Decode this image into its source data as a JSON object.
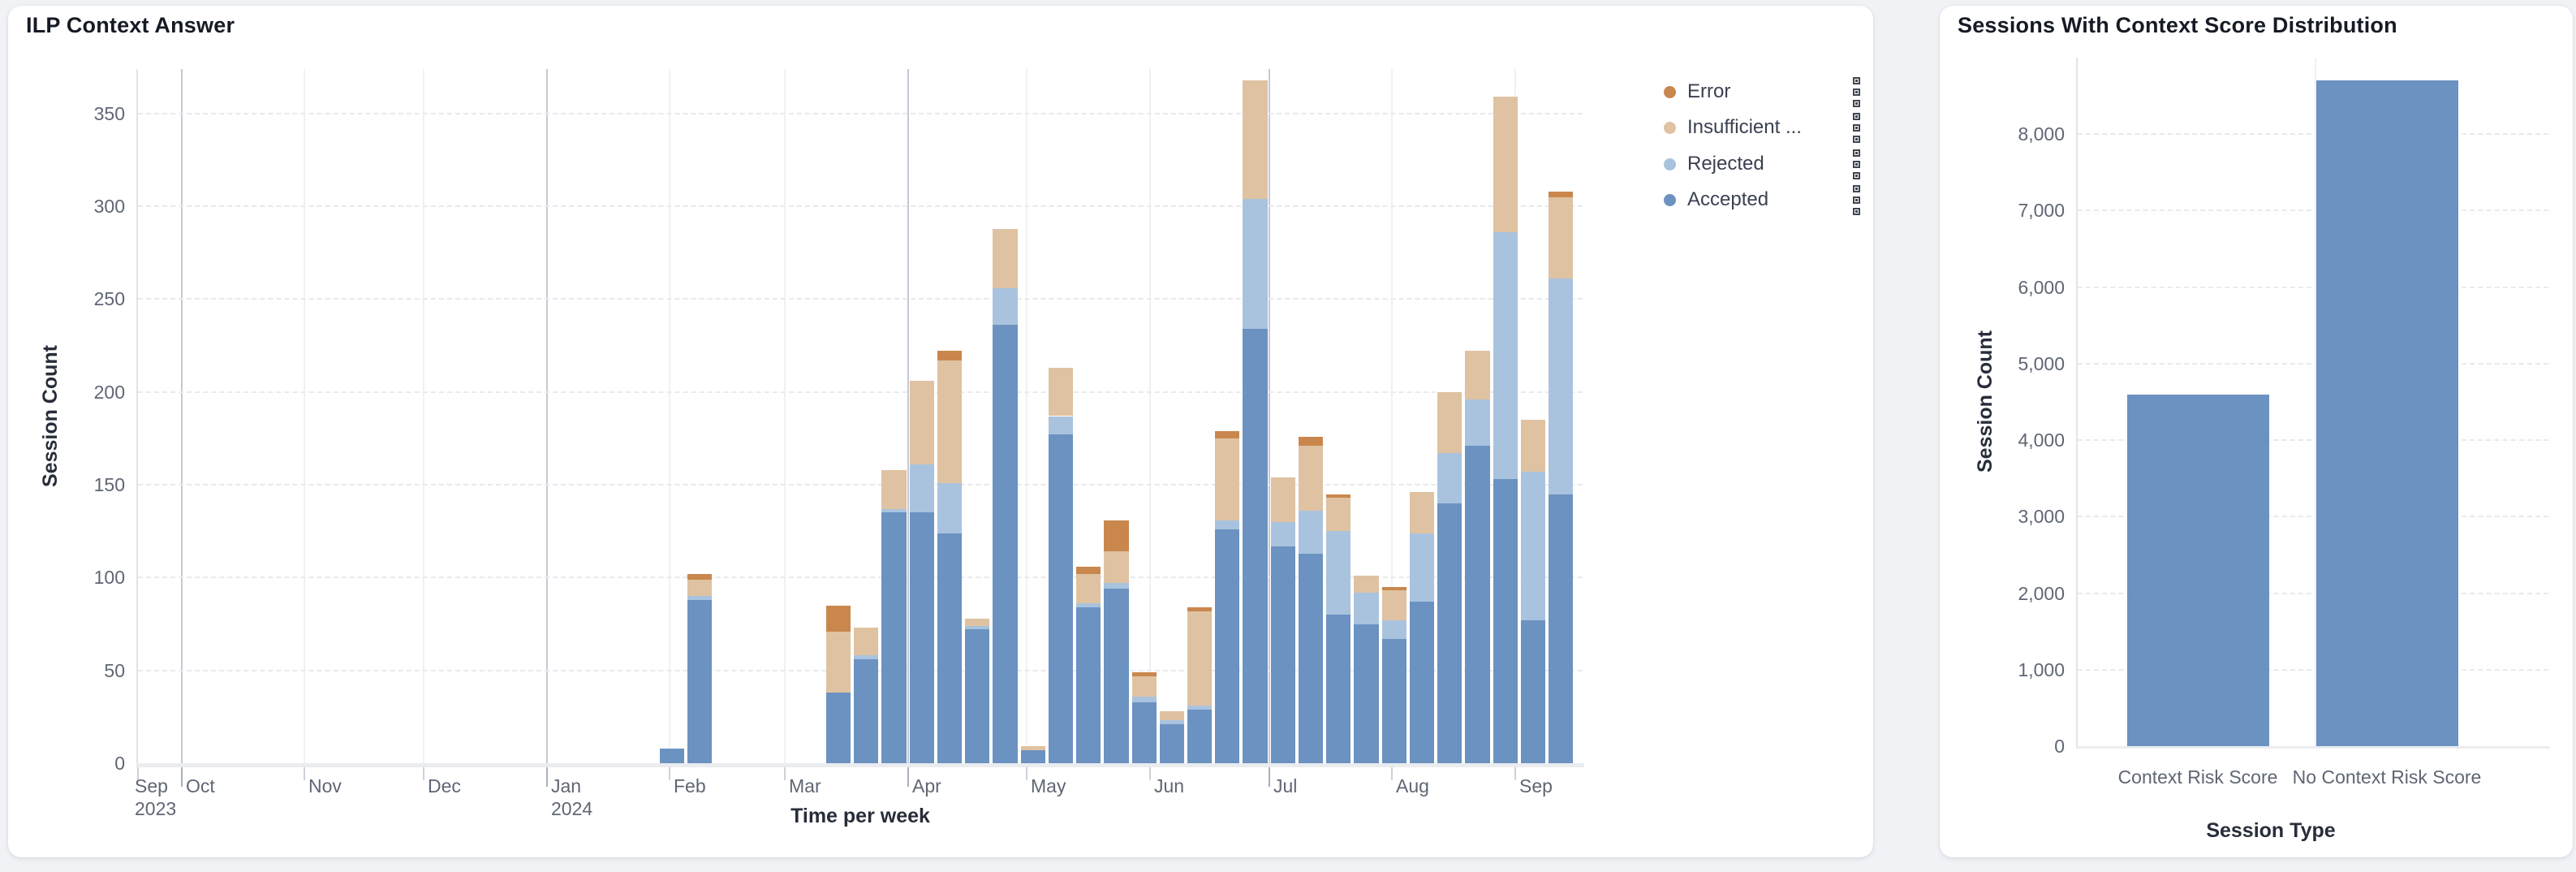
{
  "page_background": "#f1f2f6",
  "icons": {
    "legend_item_menu": "three-stacked-squares-menu-icon"
  },
  "chart_data": [
    {
      "type": "bar",
      "stacked": true,
      "title": "ILP Context Answer",
      "xlabel": "Time per week",
      "ylabel": "Session Count",
      "ylim": [
        0,
        374
      ],
      "y_ticks": [
        0,
        50,
        100,
        150,
        200,
        250,
        300,
        350
      ],
      "grid": "dashed-horizontal",
      "legend_position": "right-top",
      "x_domain": [
        "2023-09-20",
        "2024-09-18"
      ],
      "x_ticks": [
        {
          "label": "Sep",
          "sublabel": "2023",
          "date": "2023-09-20",
          "style": "edge"
        },
        {
          "label": "Oct",
          "date": "2023-10-01",
          "style": "quarter"
        },
        {
          "label": "Nov",
          "date": "2023-11-01",
          "style": "minor"
        },
        {
          "label": "Dec",
          "date": "2023-12-01",
          "style": "minor"
        },
        {
          "label": "Jan",
          "sublabel": "2024",
          "date": "2024-01-01",
          "style": "quarter"
        },
        {
          "label": "Feb",
          "date": "2024-02-01",
          "style": "minor"
        },
        {
          "label": "Mar",
          "date": "2024-03-01",
          "style": "minor"
        },
        {
          "label": "Apr",
          "date": "2024-04-01",
          "style": "quarter"
        },
        {
          "label": "May",
          "date": "2024-05-01",
          "style": "minor"
        },
        {
          "label": "Jun",
          "date": "2024-06-01",
          "style": "minor"
        },
        {
          "label": "Jul",
          "date": "2024-07-01",
          "style": "quarter"
        },
        {
          "label": "Aug",
          "date": "2024-08-01",
          "style": "minor"
        },
        {
          "label": "Sep",
          "date": "2024-09-01",
          "style": "minor"
        }
      ],
      "series": [
        {
          "key": "error",
          "name": "Error",
          "color": "#c9874d"
        },
        {
          "key": "insufficient",
          "name": "Insufficient ...",
          "color": "#dfc2a2"
        },
        {
          "key": "rejected",
          "name": "Rejected",
          "color": "#a9c3de"
        },
        {
          "key": "accepted",
          "name": "Accepted",
          "color": "#6b92c1"
        }
      ],
      "stack_order_bottom_to_top": [
        "accepted",
        "rejected",
        "insufficient",
        "error"
      ],
      "weeks": [
        {
          "start": "2024-01-29",
          "accepted": 8,
          "rejected": 0,
          "insufficient": 0,
          "error": 0
        },
        {
          "start": "2024-02-05",
          "accepted": 88,
          "rejected": 2,
          "insufficient": 9,
          "error": 3
        },
        {
          "start": "2024-03-11",
          "accepted": 38,
          "rejected": 0,
          "insufficient": 33,
          "error": 14
        },
        {
          "start": "2024-03-18",
          "accepted": 56,
          "rejected": 2,
          "insufficient": 15,
          "error": 0
        },
        {
          "start": "2024-03-25",
          "accepted": 135,
          "rejected": 2,
          "insufficient": 21,
          "error": 0
        },
        {
          "start": "2024-04-01",
          "accepted": 135,
          "rejected": 26,
          "insufficient": 45,
          "error": 0
        },
        {
          "start": "2024-04-08",
          "accepted": 124,
          "rejected": 27,
          "insufficient": 66,
          "error": 5
        },
        {
          "start": "2024-04-15",
          "accepted": 72,
          "rejected": 2,
          "insufficient": 4,
          "error": 0
        },
        {
          "start": "2024-04-22",
          "accepted": 236,
          "rejected": 20,
          "insufficient": 32,
          "error": 0
        },
        {
          "start": "2024-04-29",
          "accepted": 7,
          "rejected": 0,
          "insufficient": 2,
          "error": 0
        },
        {
          "start": "2024-05-06",
          "accepted": 177,
          "rejected": 10,
          "insufficient": 26,
          "error": 0
        },
        {
          "start": "2024-05-13",
          "accepted": 84,
          "rejected": 2,
          "insufficient": 16,
          "error": 4
        },
        {
          "start": "2024-05-20",
          "accepted": 94,
          "rejected": 3,
          "insufficient": 17,
          "error": 17
        },
        {
          "start": "2024-05-27",
          "accepted": 33,
          "rejected": 3,
          "insufficient": 11,
          "error": 2
        },
        {
          "start": "2024-06-03",
          "accepted": 21,
          "rejected": 2,
          "insufficient": 5,
          "error": 0
        },
        {
          "start": "2024-06-10",
          "accepted": 29,
          "rejected": 2,
          "insufficient": 51,
          "error": 2
        },
        {
          "start": "2024-06-17",
          "accepted": 126,
          "rejected": 5,
          "insufficient": 44,
          "error": 4
        },
        {
          "start": "2024-06-24",
          "accepted": 234,
          "rejected": 70,
          "insufficient": 64,
          "error": 0
        },
        {
          "start": "2024-07-01",
          "accepted": 117,
          "rejected": 13,
          "insufficient": 24,
          "error": 0
        },
        {
          "start": "2024-07-08",
          "accepted": 113,
          "rejected": 23,
          "insufficient": 35,
          "error": 5
        },
        {
          "start": "2024-07-15",
          "accepted": 80,
          "rejected": 45,
          "insufficient": 18,
          "error": 2
        },
        {
          "start": "2024-07-22",
          "accepted": 75,
          "rejected": 17,
          "insufficient": 9,
          "error": 0
        },
        {
          "start": "2024-07-29",
          "accepted": 67,
          "rejected": 10,
          "insufficient": 16,
          "error": 2
        },
        {
          "start": "2024-08-05",
          "accepted": 87,
          "rejected": 37,
          "insufficient": 22,
          "error": 0
        },
        {
          "start": "2024-08-12",
          "accepted": 140,
          "rejected": 27,
          "insufficient": 33,
          "error": 0
        },
        {
          "start": "2024-08-19",
          "accepted": 171,
          "rejected": 25,
          "insufficient": 26,
          "error": 0
        },
        {
          "start": "2024-08-26",
          "accepted": 153,
          "rejected": 133,
          "insufficient": 73,
          "error": 0
        },
        {
          "start": "2024-09-02",
          "accepted": 77,
          "rejected": 80,
          "insufficient": 28,
          "error": 0
        },
        {
          "start": "2024-09-09",
          "accepted": 145,
          "rejected": 116,
          "insufficient": 44,
          "error": 3
        }
      ]
    },
    {
      "type": "bar",
      "stacked": false,
      "title": "Sessions With Context Score Distribution",
      "xlabel": "Session Type",
      "ylabel": "Session Count",
      "ylim": [
        0,
        9000
      ],
      "y_ticks": [
        0,
        1000,
        2000,
        3000,
        4000,
        5000,
        6000,
        7000,
        8000
      ],
      "grid": "dashed-horizontal",
      "categories": [
        "Context Risk Score",
        "No Context Risk Score"
      ],
      "values": [
        4600,
        8700
      ],
      "bar_color": "#6b92c1"
    }
  ]
}
